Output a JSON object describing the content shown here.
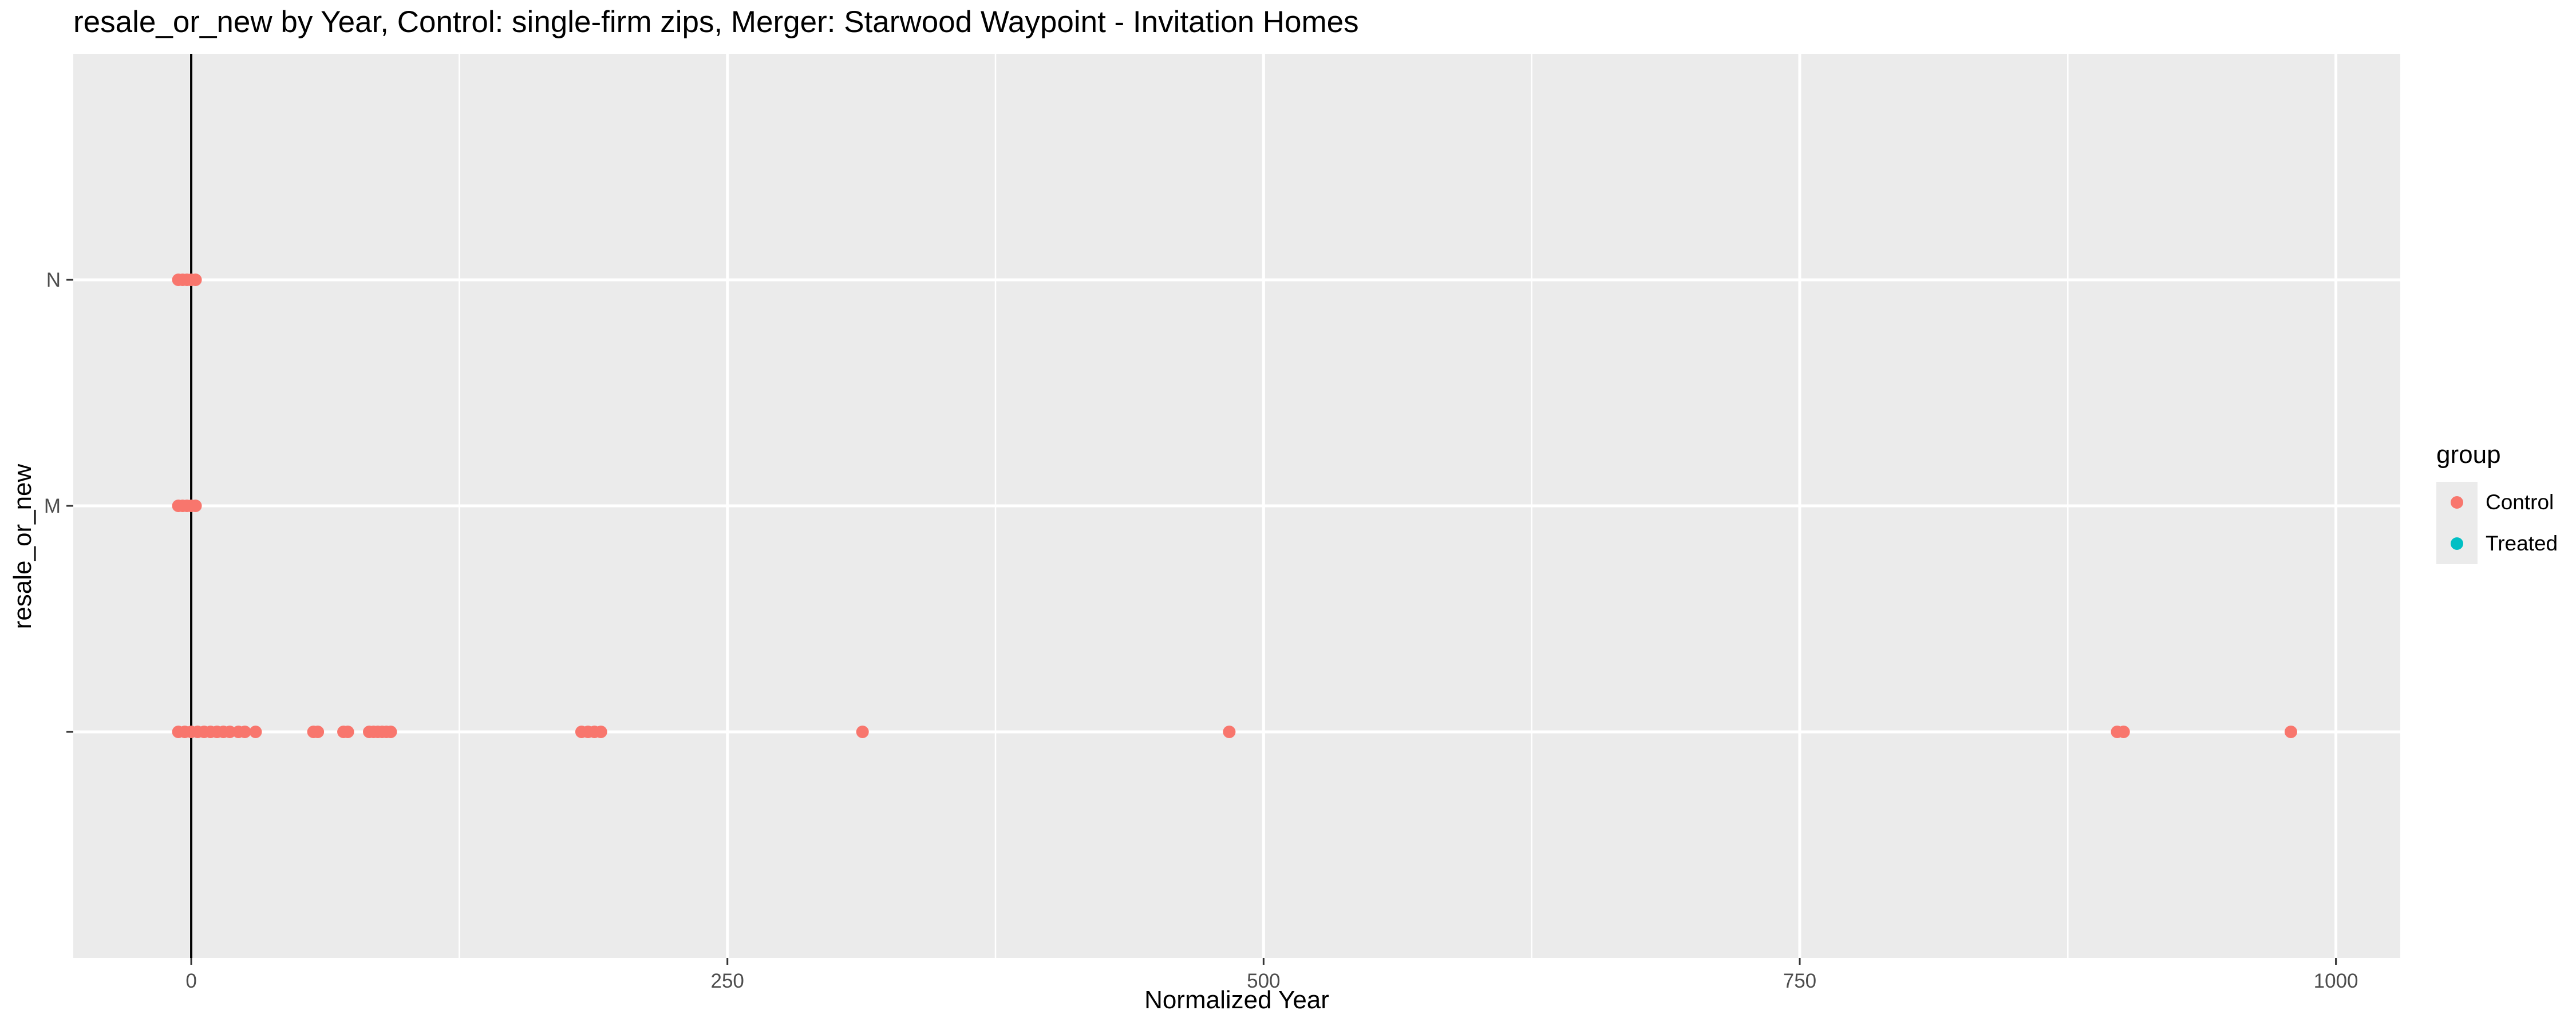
{
  "chart_data": {
    "type": "scatter",
    "title": "resale_or_new by Year, Control: single-firm zips, Merger: Starwood Waypoint - Invitation Homes",
    "xlabel": "Normalized Year",
    "ylabel": "resale_or_new",
    "xlim": [
      -55,
      1030
    ],
    "x_ticks": [
      0,
      250,
      500,
      750,
      1000
    ],
    "y_categories": [
      "",
      "M",
      "N"
    ],
    "grid": true,
    "vline_x": 0,
    "legend": {
      "title": "group",
      "placement": "right"
    },
    "series": [
      {
        "name": "Control",
        "color": "#F8766D",
        "points": [
          {
            "x": -6,
            "y": "N"
          },
          {
            "x": -4,
            "y": "N"
          },
          {
            "x": -2,
            "y": "N"
          },
          {
            "x": 0,
            "y": "N"
          },
          {
            "x": 2,
            "y": "N"
          },
          {
            "x": -6,
            "y": "M"
          },
          {
            "x": -4,
            "y": "M"
          },
          {
            "x": -2,
            "y": "M"
          },
          {
            "x": 0,
            "y": "M"
          },
          {
            "x": 2,
            "y": "M"
          },
          {
            "x": -6,
            "y": ""
          },
          {
            "x": -3,
            "y": ""
          },
          {
            "x": 0,
            "y": ""
          },
          {
            "x": 3,
            "y": ""
          },
          {
            "x": 6,
            "y": ""
          },
          {
            "x": 9,
            "y": ""
          },
          {
            "x": 12,
            "y": ""
          },
          {
            "x": 15,
            "y": ""
          },
          {
            "x": 18,
            "y": ""
          },
          {
            "x": 22,
            "y": ""
          },
          {
            "x": 25,
            "y": ""
          },
          {
            "x": 30,
            "y": ""
          },
          {
            "x": 57,
            "y": ""
          },
          {
            "x": 59,
            "y": ""
          },
          {
            "x": 71,
            "y": ""
          },
          {
            "x": 73,
            "y": ""
          },
          {
            "x": 83,
            "y": ""
          },
          {
            "x": 85,
            "y": ""
          },
          {
            "x": 87,
            "y": ""
          },
          {
            "x": 89,
            "y": ""
          },
          {
            "x": 91,
            "y": ""
          },
          {
            "x": 93,
            "y": ""
          },
          {
            "x": 182,
            "y": ""
          },
          {
            "x": 185,
            "y": ""
          },
          {
            "x": 188,
            "y": ""
          },
          {
            "x": 191,
            "y": ""
          },
          {
            "x": 313,
            "y": ""
          },
          {
            "x": 484,
            "y": ""
          },
          {
            "x": 898,
            "y": ""
          },
          {
            "x": 901,
            "y": ""
          },
          {
            "x": 979,
            "y": ""
          }
        ]
      },
      {
        "name": "Treated",
        "color": "#00BFC4",
        "points": []
      }
    ]
  }
}
